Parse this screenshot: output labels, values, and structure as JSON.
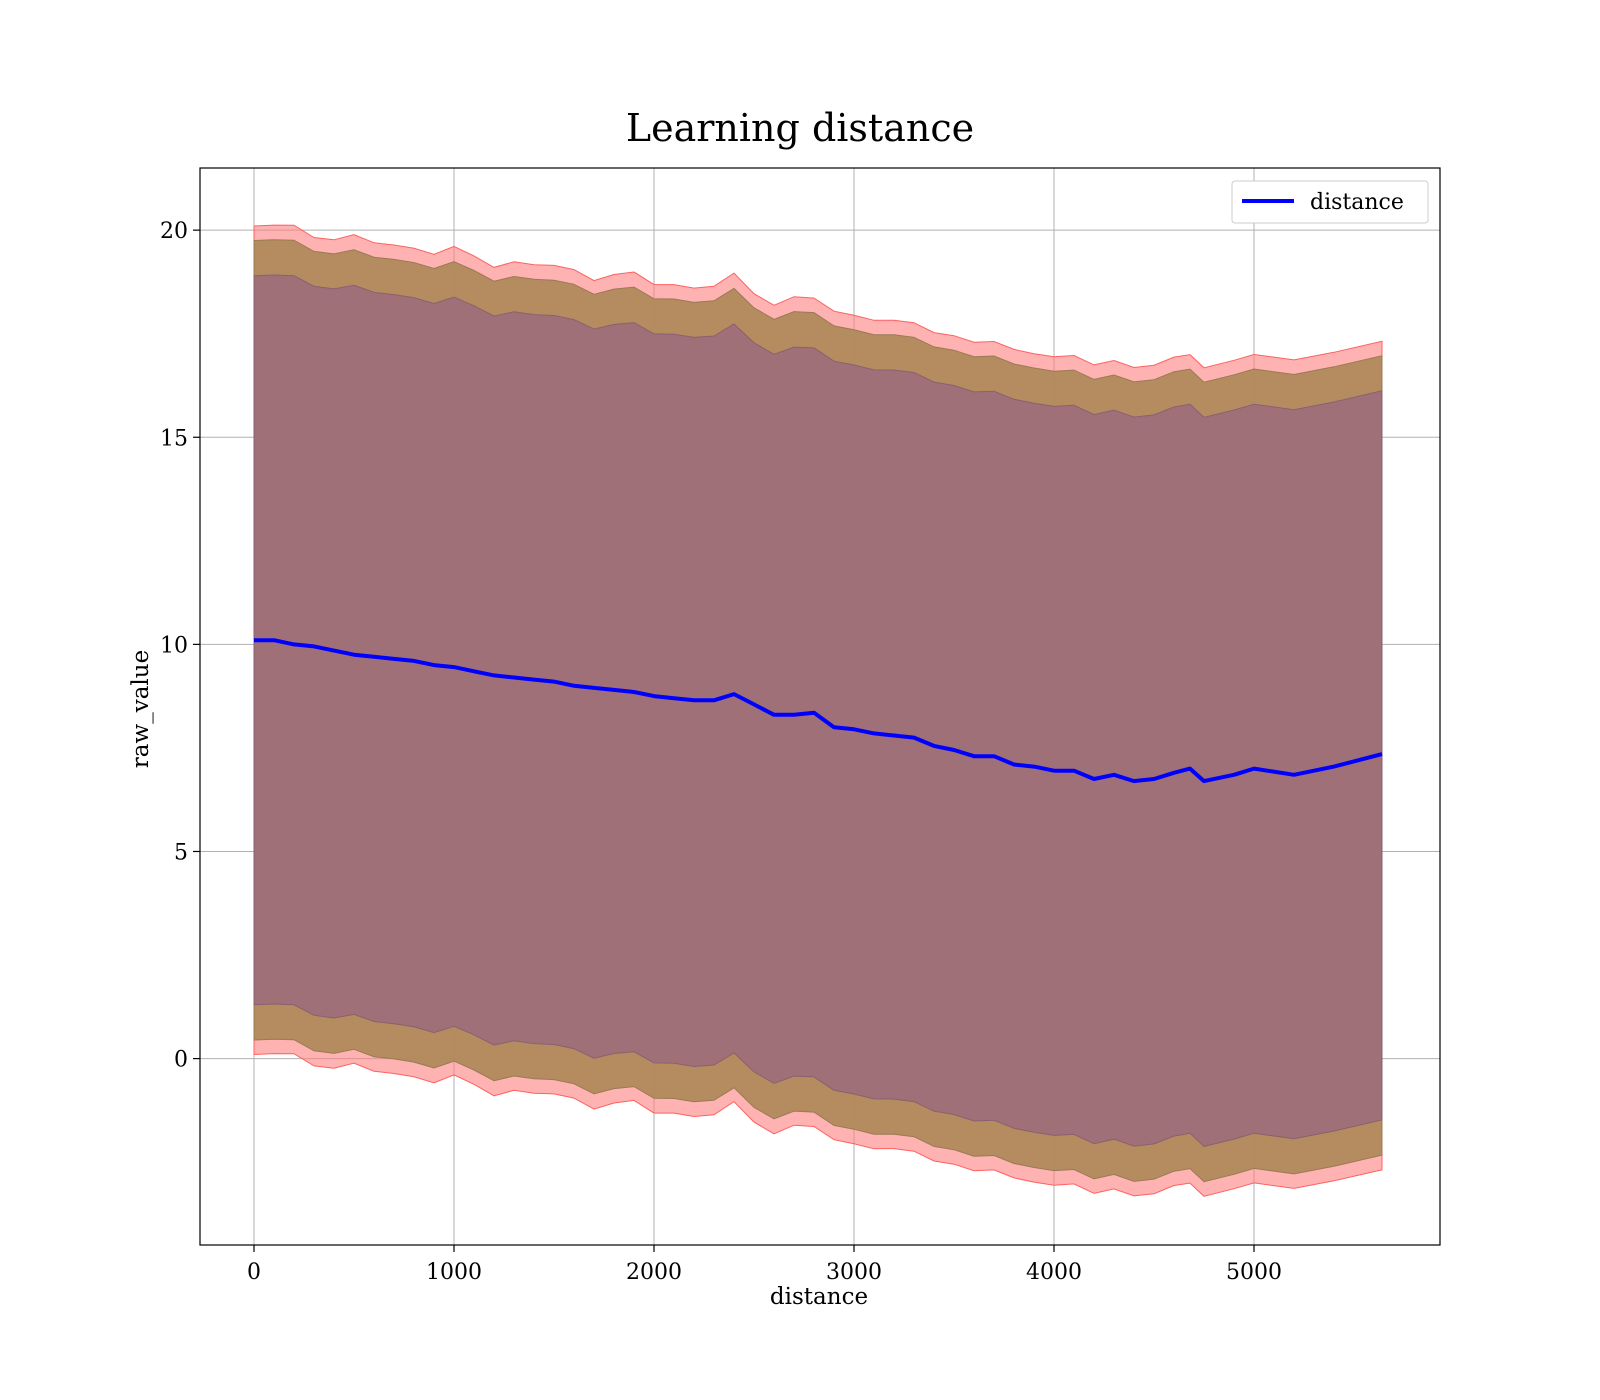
{
  "chart_data": {
    "type": "area",
    "title": "Learning distance",
    "xlabel": "distance",
    "ylabel": "raw_value",
    "xlim": [
      -270,
      5930
    ],
    "ylim": [
      -4.5,
      21.5
    ],
    "x_ticks": [
      0,
      1000,
      2000,
      3000,
      4000,
      5000
    ],
    "y_ticks": [
      0,
      5,
      10,
      15,
      20
    ],
    "grid": true,
    "legend_position": "top-right",
    "colors": {
      "line": "#0000ff",
      "band_outer": "#ff7f7f",
      "band_middle": "#b08a5c",
      "band_inner": "#a07078"
    },
    "x": [
      0,
      100,
      200,
      300,
      400,
      500,
      600,
      700,
      800,
      900,
      1000,
      1100,
      1200,
      1300,
      1400,
      1500,
      1600,
      1700,
      1800,
      1900,
      2000,
      2100,
      2200,
      2300,
      2400,
      2500,
      2600,
      2700,
      2800,
      2900,
      3000,
      3100,
      3200,
      3300,
      3400,
      3500,
      3600,
      3700,
      3800,
      3900,
      4000,
      4100,
      4200,
      4300,
      4400,
      4500,
      4600,
      4680,
      4750,
      4900,
      5000,
      5200,
      5400,
      5640
    ],
    "series": [
      {
        "name": "distance",
        "values": [
          10.1,
          10.1,
          10.0,
          9.95,
          9.85,
          9.75,
          9.7,
          9.65,
          9.6,
          9.5,
          9.45,
          9.35,
          9.25,
          9.2,
          9.15,
          9.1,
          9.0,
          8.95,
          8.9,
          8.85,
          8.75,
          8.7,
          8.65,
          8.65,
          8.8,
          8.55,
          8.3,
          8.3,
          8.35,
          8.0,
          7.95,
          7.85,
          7.8,
          7.75,
          7.55,
          7.45,
          7.3,
          7.3,
          7.1,
          7.05,
          6.95,
          6.95,
          6.75,
          6.85,
          6.7,
          6.75,
          6.9,
          7.0,
          6.7,
          6.85,
          7.0,
          6.85,
          7.05,
          7.35
        ]
      }
    ]
  }
}
